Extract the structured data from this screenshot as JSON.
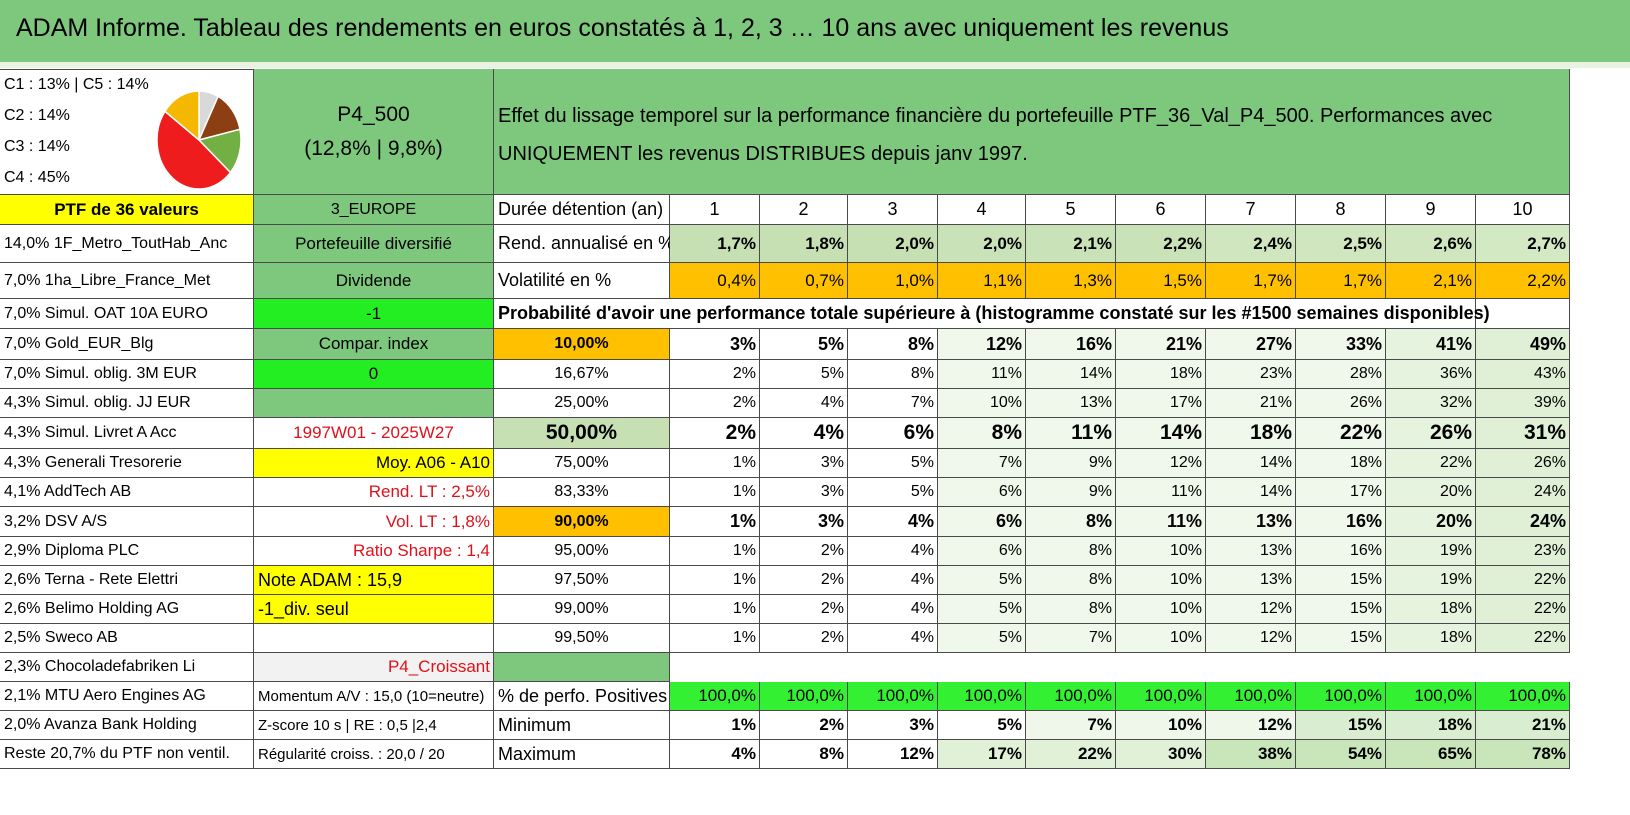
{
  "header": {
    "title": "ADAM Informe. Tableau des rendements en euros constatés à 1, 2, 3 … 10 ans avec uniquement les revenus"
  },
  "pie": {
    "legend": [
      "C1 : 13% | C5 : 14%",
      "C2 : 14%",
      "C3 : 14%",
      "C4 : 45%"
    ],
    "slices": [
      {
        "label": "C1",
        "value": 13,
        "color": "#7b3a12"
      },
      {
        "label": "C2",
        "value": 14,
        "color": "#6aae3e"
      },
      {
        "label": "C3",
        "value": 14,
        "color": "#7b3a12"
      },
      {
        "label": "C4",
        "value": 45,
        "color": "#ee1010"
      },
      {
        "label": "C5",
        "value": 14,
        "color": "#f5b800"
      }
    ],
    "order_colors": [
      "#d9d9d9",
      "#8b3f12",
      "#72b043",
      "#ee1c1c",
      "#f5b800"
    ],
    "order_values": [
      7,
      13,
      14,
      45,
      14
    ]
  },
  "portfolio": {
    "name": "P4_500",
    "perf": "(12,8% | 9,8%)"
  },
  "intro": "Effet du lissage temporel sur la performance financière du portefeuille PTF_36_Val_P4_500. Performances avec UNIQUEMENT les revenus DISTRIBUES depuis janv 1997.",
  "left": {
    "ptf": "PTF de 36 valeurs",
    "holdings": [
      "14,0% 1F_Metro_ToutHab_Anc",
      "7,0% 1ha_Libre_France_Met",
      "7,0% Simul. OAT 10A EURO",
      "7,0% Gold_EUR_Blg",
      "7,0% Simul. oblig. 3M EUR",
      "4,3% Simul. oblig. JJ EUR",
      "4,3% Simul. Livret A Acc",
      "4,3% Generali Tresorerie",
      "4,1% AddTech AB",
      "3,2% DSV A/S",
      "2,9% Diploma PLC",
      "2,6% Terna - Rete Elettri",
      "2,6% Belimo Holding AG",
      "2,5% Sweco AB",
      "2,3% Chocoladefabriken Li",
      "2,1% MTU Aero Engines AG",
      "2,0% Avanza Bank Holding",
      "Reste 20,7% du PTF non ventil."
    ]
  },
  "mid": {
    "zone": "3_EUROPE",
    "items": [
      "Portefeuille diversifié",
      "Dividende",
      "-1",
      "Compar. index",
      "0",
      "",
      "1997W01 - 2025W27",
      "Moy. A06 - A10",
      "Rend. LT : 2,5%",
      "Vol. LT : 1,8%",
      "Ratio Sharpe : 1,4",
      "Note ADAM : 15,9",
      "-1_div. seul",
      "",
      "P4_Croissant",
      "Momentum A/V : 15,0 (10=neutre)",
      "Z-score 10 s | RE : 0,5 |2,4",
      "Régularité croiss. : 20,0 / 20"
    ]
  },
  "table": {
    "duration_label": "Durée détention (an)",
    "years": [
      "1",
      "2",
      "3",
      "4",
      "5",
      "6",
      "7",
      "8",
      "9",
      "10"
    ],
    "rend_label": "Rend. annualisé en %",
    "rend": [
      "1,7%",
      "1,8%",
      "2,0%",
      "2,0%",
      "2,1%",
      "2,2%",
      "2,4%",
      "2,5%",
      "2,6%",
      "2,7%"
    ],
    "vol_label": "Volatilité en %",
    "vol": [
      "0,4%",
      "0,7%",
      "1,0%",
      "1,1%",
      "1,3%",
      "1,5%",
      "1,7%",
      "1,7%",
      "2,1%",
      "2,2%"
    ],
    "prob_title": "Probabilité d'avoir une performance totale supérieure à (histogramme constaté sur les #1500 semaines disponibles)",
    "prob_rows": [
      {
        "p": "10,00%",
        "v": [
          "3%",
          "5%",
          "8%",
          "12%",
          "16%",
          "21%",
          "27%",
          "33%",
          "41%",
          "49%"
        ]
      },
      {
        "p": "16,67%",
        "v": [
          "2%",
          "5%",
          "8%",
          "11%",
          "14%",
          "18%",
          "23%",
          "28%",
          "36%",
          "43%"
        ]
      },
      {
        "p": "25,00%",
        "v": [
          "2%",
          "4%",
          "7%",
          "10%",
          "13%",
          "17%",
          "21%",
          "26%",
          "32%",
          "39%"
        ]
      },
      {
        "p": "50,00%",
        "v": [
          "2%",
          "4%",
          "6%",
          "8%",
          "11%",
          "14%",
          "18%",
          "22%",
          "26%",
          "31%"
        ]
      },
      {
        "p": "75,00%",
        "v": [
          "1%",
          "3%",
          "5%",
          "7%",
          "9%",
          "12%",
          "14%",
          "18%",
          "22%",
          "26%"
        ]
      },
      {
        "p": "83,33%",
        "v": [
          "1%",
          "3%",
          "5%",
          "6%",
          "9%",
          "11%",
          "14%",
          "17%",
          "20%",
          "24%"
        ]
      },
      {
        "p": "90,00%",
        "v": [
          "1%",
          "3%",
          "4%",
          "6%",
          "8%",
          "11%",
          "13%",
          "16%",
          "20%",
          "24%"
        ]
      },
      {
        "p": "95,00%",
        "v": [
          "1%",
          "2%",
          "4%",
          "6%",
          "8%",
          "10%",
          "13%",
          "16%",
          "19%",
          "23%"
        ]
      },
      {
        "p": "97,50%",
        "v": [
          "1%",
          "2%",
          "4%",
          "5%",
          "8%",
          "10%",
          "13%",
          "15%",
          "19%",
          "22%"
        ]
      },
      {
        "p": "99,00%",
        "v": [
          "1%",
          "2%",
          "4%",
          "5%",
          "8%",
          "10%",
          "12%",
          "15%",
          "18%",
          "22%"
        ]
      },
      {
        "p": "99,50%",
        "v": [
          "1%",
          "2%",
          "4%",
          "5%",
          "7%",
          "10%",
          "12%",
          "15%",
          "18%",
          "22%"
        ]
      }
    ],
    "pos_label": "% de perfo. Positives",
    "pos": [
      "100,0%",
      "100,0%",
      "100,0%",
      "100,0%",
      "100,0%",
      "100,0%",
      "100,0%",
      "100,0%",
      "100,0%",
      "100,0%"
    ],
    "min_label": "Minimum",
    "min": [
      "1%",
      "2%",
      "3%",
      "5%",
      "7%",
      "10%",
      "12%",
      "15%",
      "18%",
      "21%"
    ],
    "max_label": "Maximum",
    "max": [
      "4%",
      "8%",
      "12%",
      "17%",
      "22%",
      "30%",
      "38%",
      "54%",
      "65%",
      "78%"
    ]
  }
}
